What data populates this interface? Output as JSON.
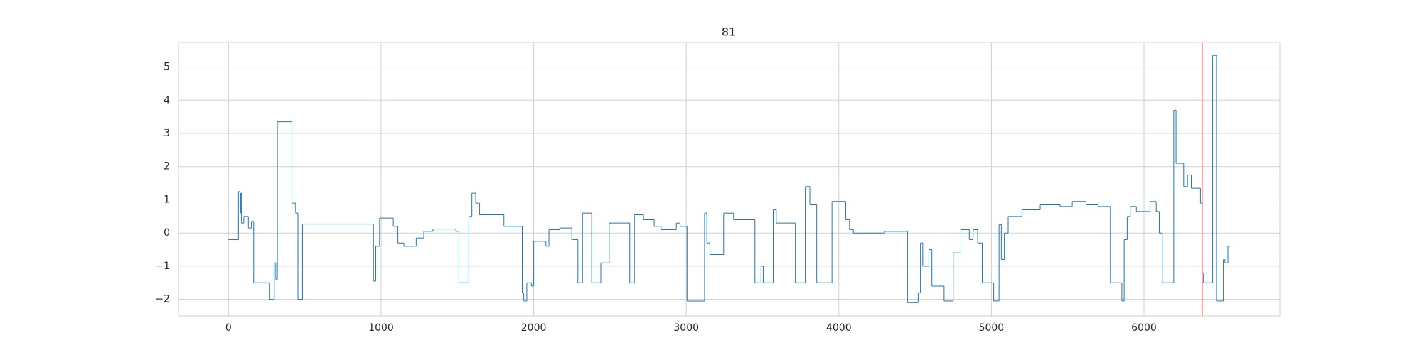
{
  "chart_data": {
    "type": "line",
    "title": "81",
    "drawstyle": "steps-post",
    "grid": true,
    "xlim": [
      -328,
      6890
    ],
    "ylim": [
      -2.5,
      5.74
    ],
    "xticks": [
      0,
      1000,
      2000,
      3000,
      4000,
      5000,
      6000
    ],
    "yticks": [
      {
        "value": -2,
        "label": "−2"
      },
      {
        "value": -1,
        "label": "−1"
      },
      0,
      1,
      2,
      3,
      4,
      5
    ],
    "vline": {
      "x": 6382,
      "color": "#ff6b6b"
    },
    "x": [
      0,
      65,
      75,
      80,
      85,
      100,
      130,
      150,
      165,
      270,
      300,
      310,
      320,
      415,
      440,
      455,
      485,
      950,
      965,
      990,
      1080,
      1110,
      1150,
      1230,
      1280,
      1340,
      1490,
      1510,
      1575,
      1595,
      1620,
      1645,
      1805,
      1925,
      1935,
      1955,
      1985,
      2000,
      2080,
      2100,
      2170,
      2250,
      2290,
      2320,
      2380,
      2440,
      2495,
      2630,
      2660,
      2720,
      2790,
      2835,
      2935,
      2960,
      3005,
      3120,
      3135,
      3155,
      3245,
      3310,
      3450,
      3490,
      3505,
      3570,
      3590,
      3715,
      3780,
      3810,
      3855,
      3955,
      4045,
      4070,
      4095,
      4300,
      4450,
      4520,
      4535,
      4550,
      4590,
      4610,
      4690,
      4750,
      4800,
      4855,
      4880,
      4910,
      4940,
      5015,
      5050,
      5065,
      5085,
      5110,
      5200,
      5320,
      5450,
      5530,
      5620,
      5700,
      5780,
      5855,
      5870,
      5890,
      5910,
      5950,
      6040,
      6080,
      6100,
      6120,
      6195,
      6210,
      6260,
      6285,
      6310,
      6370,
      6380,
      6390,
      6450,
      6475,
      6520,
      6530,
      6550,
      6565
    ],
    "series": [
      {
        "color": "#1f77b4",
        "values": [
          -0.2,
          1.25,
          0.6,
          1.2,
          0.3,
          0.5,
          0.15,
          0.35,
          -1.5,
          -2.0,
          -0.9,
          -1.4,
          3.35,
          0.9,
          0.6,
          -2.0,
          0.27,
          -1.45,
          -0.4,
          0.45,
          0.2,
          -0.3,
          -0.4,
          -0.15,
          0.05,
          0.12,
          0.05,
          -1.5,
          0.5,
          1.2,
          0.9,
          0.55,
          0.2,
          -1.8,
          -2.05,
          -1.5,
          -1.6,
          -0.25,
          -0.4,
          0.1,
          0.15,
          -0.2,
          -1.5,
          0.6,
          -1.5,
          -0.9,
          0.3,
          -1.5,
          0.55,
          0.4,
          0.2,
          0.1,
          0.3,
          0.2,
          -2.05,
          0.6,
          -0.3,
          -0.65,
          0.6,
          0.4,
          -1.5,
          -1.0,
          -1.5,
          0.7,
          0.3,
          -1.5,
          1.4,
          0.85,
          -1.5,
          0.95,
          0.4,
          0.1,
          0,
          0.05,
          -2.1,
          -1.8,
          -0.3,
          -1.0,
          -0.5,
          -1.6,
          -2.05,
          -0.6,
          0.1,
          -0.2,
          0.1,
          -0.3,
          -1.5,
          -2.05,
          0.25,
          -0.8,
          0,
          0.5,
          0.7,
          0.85,
          0.8,
          0.95,
          0.85,
          0.8,
          -1.5,
          -2.05,
          -0.2,
          0.5,
          0.8,
          0.65,
          0.95,
          0.65,
          0,
          -1.5,
          3.7,
          2.1,
          1.4,
          1.75,
          1.35,
          0.9,
          -1.2,
          -1.5,
          5.35,
          -2.05,
          -0.8,
          -0.9,
          -0.4,
          -0.4
        ]
      }
    ]
  }
}
